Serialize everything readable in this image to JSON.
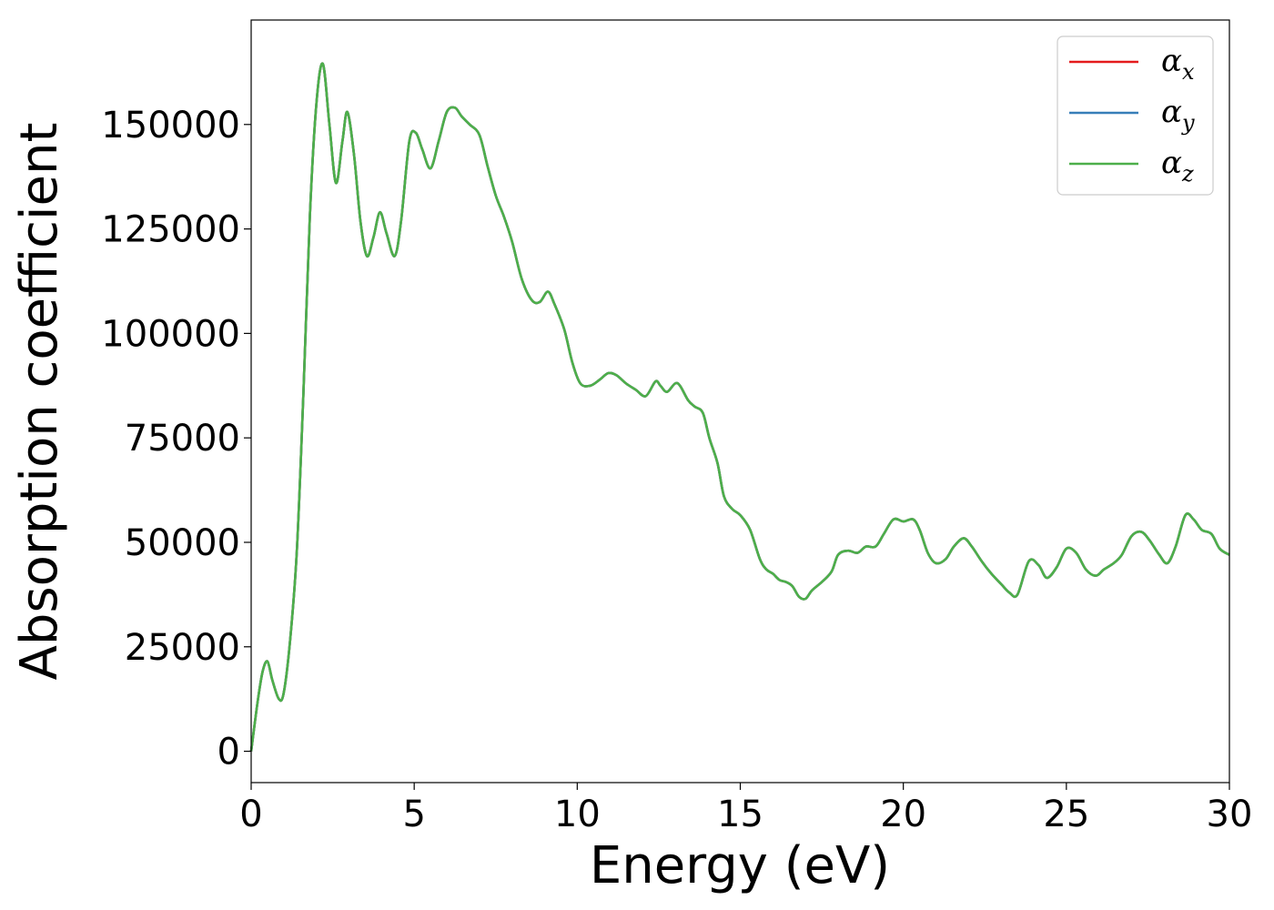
{
  "chart_data": {
    "type": "line",
    "title": "",
    "xlabel": "Energy (eV)",
    "ylabel": "Absorption coefficient",
    "xlim": [
      0,
      30
    ],
    "ylim": [
      -7500,
      175000
    ],
    "x_ticks": [
      0,
      5,
      10,
      15,
      20,
      25,
      30
    ],
    "y_ticks": [
      0,
      25000,
      50000,
      75000,
      100000,
      125000,
      150000
    ],
    "grid": false,
    "legend_position": "top-right",
    "legend": [
      {
        "symbol": "α",
        "subscript": "x",
        "color": "#e41a1c"
      },
      {
        "symbol": "α",
        "subscript": "y",
        "color": "#377eb8"
      },
      {
        "symbol": "α",
        "subscript": "z",
        "color": "#4daf4a"
      }
    ],
    "x": [
      0,
      0.2,
      0.35,
      0.5,
      0.65,
      0.85,
      1.0,
      1.2,
      1.4,
      1.6,
      1.8,
      2.0,
      2.2,
      2.4,
      2.6,
      2.8,
      2.95,
      3.15,
      3.35,
      3.55,
      3.75,
      3.95,
      4.15,
      4.4,
      4.6,
      4.85,
      5.05,
      5.25,
      5.5,
      5.75,
      6.0,
      6.25,
      6.45,
      6.7,
      7.0,
      7.25,
      7.5,
      7.75,
      8.0,
      8.3,
      8.6,
      8.85,
      9.1,
      9.3,
      9.6,
      9.85,
      10.1,
      10.4,
      10.7,
      10.95,
      11.2,
      11.5,
      11.8,
      12.1,
      12.4,
      12.55,
      12.75,
      13.0,
      13.15,
      13.4,
      13.6,
      13.85,
      14.05,
      14.3,
      14.5,
      14.75,
      15.0,
      15.3,
      15.6,
      15.8,
      16.0,
      16.2,
      16.4,
      16.6,
      16.8,
      17.0,
      17.2,
      17.5,
      17.8,
      18.0,
      18.3,
      18.6,
      18.85,
      19.15,
      19.4,
      19.7,
      20.0,
      20.3,
      20.5,
      20.75,
      21.0,
      21.3,
      21.55,
      21.85,
      22.1,
      22.4,
      22.7,
      23.0,
      23.25,
      23.5,
      23.85,
      24.15,
      24.4,
      24.7,
      25.0,
      25.3,
      25.6,
      25.9,
      26.15,
      26.45,
      26.7,
      27.0,
      27.3,
      27.55,
      27.85,
      28.1,
      28.35,
      28.65,
      28.9,
      29.15,
      29.45,
      29.7,
      30.0
    ],
    "series": [
      {
        "values": [
          0,
          12000,
          19000,
          21500,
          17000,
          12500,
          14000,
          27000,
          48000,
          85000,
          128000,
          155000,
          164500,
          150000,
          136000,
          146000,
          153000,
          143000,
          127000,
          118500,
          123000,
          129000,
          124000,
          118500,
          127000,
          146000,
          148000,
          144000,
          139500,
          146000,
          153000,
          154000,
          152000,
          150000,
          147500,
          140000,
          133000,
          128000,
          122000,
          113000,
          108000,
          107500,
          110000,
          107000,
          101000,
          93000,
          88000,
          87500,
          89000,
          90500,
          90000,
          88000,
          86500,
          85000,
          88500,
          87500,
          86000,
          88000,
          87500,
          84000,
          82500,
          81000,
          75000,
          69000,
          61000,
          58000,
          56500,
          53000,
          46000,
          43500,
          42500,
          41000,
          40500,
          39500,
          37000,
          36500,
          38500,
          40500,
          43000,
          47000,
          48000,
          47500,
          49000,
          49000,
          52000,
          55500,
          55000,
          55500,
          53000,
          47500,
          45000,
          46000,
          49000,
          51000,
          49000,
          45500,
          42500,
          40000,
          38000,
          37500,
          45500,
          44500,
          41500,
          44000,
          48500,
          47500,
          43500,
          42000,
          43500,
          45000,
          47000,
          51500,
          52500,
          50500,
          47000,
          45000,
          49000,
          56500,
          55500,
          53000,
          52000,
          48500,
          47000
        ]
      },
      {
        "values": [
          0,
          12000,
          19000,
          21500,
          17000,
          12500,
          14000,
          27000,
          48000,
          85000,
          128000,
          155000,
          164500,
          150000,
          136000,
          146000,
          153000,
          143000,
          127000,
          118500,
          123000,
          129000,
          124000,
          118500,
          127000,
          146000,
          148000,
          144000,
          139500,
          146000,
          153000,
          154000,
          152000,
          150000,
          147500,
          140000,
          133000,
          128000,
          122000,
          113000,
          108000,
          107500,
          110000,
          107000,
          101000,
          93000,
          88000,
          87500,
          89000,
          90500,
          90000,
          88000,
          86500,
          85000,
          88500,
          87500,
          86000,
          88000,
          87500,
          84000,
          82500,
          81000,
          75000,
          69000,
          61000,
          58000,
          56500,
          53000,
          46000,
          43500,
          42500,
          41000,
          40500,
          39500,
          37000,
          36500,
          38500,
          40500,
          43000,
          47000,
          48000,
          47500,
          49000,
          49000,
          52000,
          55500,
          55000,
          55500,
          53000,
          47500,
          45000,
          46000,
          49000,
          51000,
          49000,
          45500,
          42500,
          40000,
          38000,
          37500,
          45500,
          44500,
          41500,
          44000,
          48500,
          47500,
          43500,
          42000,
          43500,
          45000,
          47000,
          51500,
          52500,
          50500,
          47000,
          45000,
          49000,
          56500,
          55500,
          53000,
          52000,
          48500,
          47000
        ]
      },
      {
        "values": [
          0,
          12000,
          19000,
          21500,
          17000,
          12500,
          14000,
          27000,
          48000,
          85000,
          128000,
          155000,
          164500,
          150000,
          136000,
          146000,
          153000,
          143000,
          127000,
          118500,
          123000,
          129000,
          124000,
          118500,
          127000,
          146000,
          148000,
          144000,
          139500,
          146000,
          153000,
          154000,
          152000,
          150000,
          147500,
          140000,
          133000,
          128000,
          122000,
          113000,
          108000,
          107500,
          110000,
          107000,
          101000,
          93000,
          88000,
          87500,
          89000,
          90500,
          90000,
          88000,
          86500,
          85000,
          88500,
          87500,
          86000,
          88000,
          87500,
          84000,
          82500,
          81000,
          75000,
          69000,
          61000,
          58000,
          56500,
          53000,
          46000,
          43500,
          42500,
          41000,
          40500,
          39500,
          37000,
          36500,
          38500,
          40500,
          43000,
          47000,
          48000,
          47500,
          49000,
          49000,
          52000,
          55500,
          55000,
          55500,
          53000,
          47500,
          45000,
          46000,
          49000,
          51000,
          49000,
          45500,
          42500,
          40000,
          38000,
          37500,
          45500,
          44500,
          41500,
          44000,
          48500,
          47500,
          43500,
          42000,
          43500,
          45000,
          47000,
          51500,
          52500,
          50500,
          47000,
          45000,
          49000,
          56500,
          55500,
          53000,
          52000,
          48500,
          47000
        ]
      }
    ]
  }
}
